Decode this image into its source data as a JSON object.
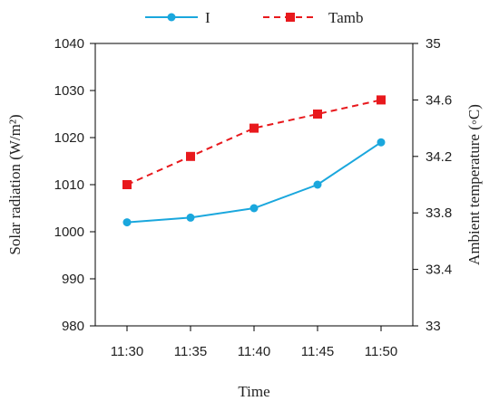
{
  "chart_data": {
    "type": "line",
    "categories": [
      "11:30",
      "11:35",
      "11:40",
      "11:45",
      "11:50"
    ],
    "series": [
      {
        "name": "I",
        "axis": "left",
        "values": [
          1002,
          1003,
          1005,
          1010,
          1019
        ],
        "color": "#1aa7dd",
        "marker": "circle",
        "line_style": "solid"
      },
      {
        "name": "Tamb",
        "axis": "right",
        "values": [
          34.0,
          34.2,
          34.4,
          34.5,
          34.6
        ],
        "color": "#e8191d",
        "marker": "square",
        "line_style": "dashed"
      }
    ],
    "xlabel": "Time",
    "ylabel": "Solar radiation (W/m²)",
    "ylabel_right": "Ambient temperature (◦C)",
    "ylim": [
      980,
      1040
    ],
    "yticks": [
      "980",
      "990",
      "1000",
      "1010",
      "1020",
      "1030",
      "1040"
    ],
    "ylim_right": [
      33,
      35
    ],
    "yticks_right": [
      "33",
      "33.4",
      "33.8",
      "34.2",
      "34.6",
      "35"
    ],
    "legend_position": "top",
    "grid": false
  }
}
